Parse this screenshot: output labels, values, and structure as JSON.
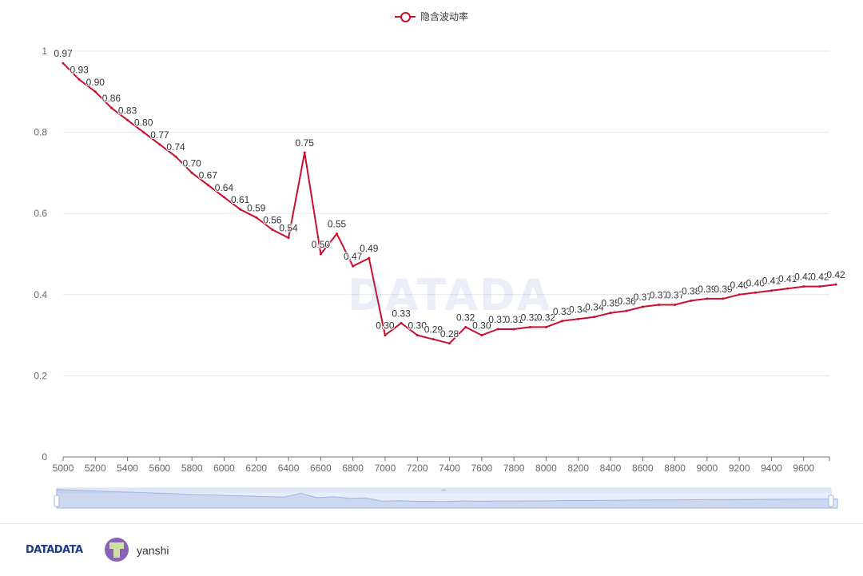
{
  "chart_data": {
    "type": "line",
    "series": [
      {
        "name": "隐含波动率",
        "color": "#c8102e",
        "values": [
          0.97,
          0.93,
          0.9,
          0.86,
          0.83,
          0.8,
          0.77,
          0.74,
          0.7,
          0.67,
          0.64,
          0.61,
          0.59,
          0.56,
          0.54,
          0.75,
          0.5,
          0.55,
          0.47,
          0.49,
          0.3,
          0.33,
          0.3,
          0.29,
          0.28,
          0.32,
          0.3,
          0.315,
          0.315,
          0.32,
          0.32,
          0.335,
          0.34,
          0.345,
          0.355,
          0.36,
          0.37,
          0.375,
          0.375,
          0.385,
          0.39,
          0.39,
          0.4,
          0.405,
          0.41,
          0.415,
          0.42,
          0.42,
          0.425
        ],
        "labels": [
          "0.97",
          "0.93",
          "0.90",
          "0.86",
          "0.83",
          "0.80",
          "0.77",
          "0.74",
          "0.70",
          "0.67",
          "0.64",
          "0.61",
          "0.59",
          "0.56",
          "0.54",
          "0.75",
          "0.50",
          "0.55",
          "0.47",
          "0.49",
          "0.30",
          "0.33",
          "0.30",
          "0.29",
          "0.28",
          "0.32",
          "0.30",
          "0.31",
          "0.31",
          "0.32",
          "0.32",
          "0.33",
          "0.34",
          "0.34",
          "0.35",
          "0.36",
          "0.37",
          "0.37",
          "0.37",
          "0.38",
          "0.39",
          "0.39",
          "0.40",
          "0.40",
          "0.41",
          "0.41",
          "0.42",
          "0.42",
          "0.42"
        ]
      }
    ],
    "x": [
      5000,
      5100,
      5200,
      5300,
      5400,
      5500,
      5600,
      5700,
      5800,
      5900,
      6000,
      6100,
      6200,
      6300,
      6400,
      6500,
      6600,
      6700,
      6800,
      6900,
      7000,
      7100,
      7200,
      7300,
      7400,
      7500,
      7600,
      7700,
      7800,
      7900,
      8000,
      8100,
      8200,
      8300,
      8400,
      8500,
      8600,
      8700,
      8800,
      8900,
      9000,
      9100,
      9200,
      9300,
      9400,
      9500,
      9600,
      9700,
      9800
    ],
    "x_ticks": [
      "5000",
      "5200",
      "5400",
      "5600",
      "5800",
      "6000",
      "6200",
      "6400",
      "6600",
      "6800",
      "7000",
      "7200",
      "7400",
      "7600",
      "7800",
      "8000",
      "8200",
      "8400",
      "8600",
      "8800",
      "9000",
      "9200",
      "9400",
      "9600"
    ],
    "y_ticks": [
      "0",
      "0.2",
      "0.4",
      "0.6",
      "0.8",
      "1"
    ],
    "ylim": [
      0,
      1
    ],
    "grid": true,
    "legend_position": "top-center",
    "data_labels": true,
    "data_zoom": true
  },
  "legend": {
    "label": "隐含波动率"
  },
  "watermark": {
    "text": "DATADA"
  },
  "footer": {
    "brand": "DATADATA",
    "username": "yanshi"
  }
}
